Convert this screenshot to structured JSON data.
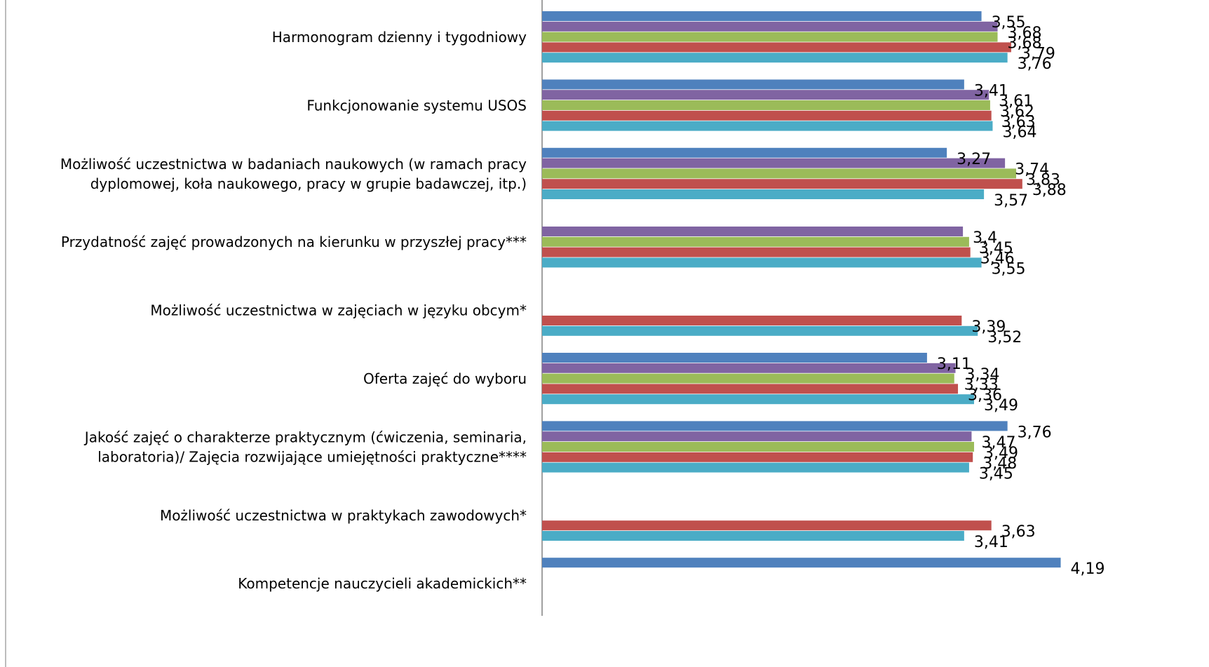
{
  "chart_data": {
    "type": "bar",
    "orientation": "horizontal",
    "grid": false,
    "legend": "none",
    "xlim": [
      0,
      4.7
    ],
    "categories": [
      [
        "Harmonogram dzienny i tygodniowy"
      ],
      [
        "Funkcjonowanie systemu USOS"
      ],
      [
        "Możliwość uczestnictwa w badaniach naukowych (w ramach pracy",
        "dyplomowej, koła naukowego, pracy w grupie badawczej, itp.)"
      ],
      [
        "Przydatność zajęć prowadzonych na kierunku w przyszłej pracy***"
      ],
      [
        "Możliwość uczestnictwa w zajęciach w języku obcym*"
      ],
      [
        "Oferta zajęć do wyboru"
      ],
      [
        "Jakość zajęć o charakterze praktycznym (ćwiczenia, seminaria,",
        "laboratoria)/ Zajęcia rozwijające umiejętności praktyczne****"
      ],
      [
        "Możliwość uczestnictwa w praktykach zawodowych*"
      ],
      [
        "Kompetencje nauczycieli akademickich**"
      ]
    ],
    "series": [
      {
        "color": "#4F81BD",
        "values": [
          3.55,
          3.41,
          3.27,
          null,
          null,
          3.11,
          3.76,
          null,
          4.19
        ],
        "labels": [
          "3,55",
          "3,41",
          "3,27",
          null,
          null,
          "3,11",
          "3,76",
          null,
          "4,19"
        ]
      },
      {
        "color": "#8064A2",
        "values": [
          3.68,
          3.61,
          3.74,
          3.4,
          null,
          3.34,
          3.47,
          null,
          null
        ],
        "labels": [
          "3,68",
          "3,61",
          "3,74",
          "3,4",
          null,
          "3,34",
          "3,47",
          null,
          null
        ]
      },
      {
        "color": "#9BBB59",
        "values": [
          3.68,
          3.62,
          3.83,
          3.45,
          null,
          3.33,
          3.49,
          null,
          null
        ],
        "labels": [
          "3,68",
          "3,62",
          "3,83",
          "3,45",
          null,
          "3,33",
          "3,49",
          null,
          null
        ]
      },
      {
        "color": "#C0504D",
        "values": [
          3.79,
          3.63,
          3.88,
          3.46,
          3.39,
          3.36,
          3.48,
          3.63,
          null
        ],
        "labels": [
          "3,79",
          "3,63",
          "3,88",
          "3,46",
          "3,39",
          "3,36",
          "3,48",
          "3,63",
          null
        ]
      },
      {
        "color": "#4BACC6",
        "values": [
          3.76,
          3.64,
          3.57,
          3.55,
          3.52,
          3.49,
          3.45,
          3.41,
          null
        ],
        "labels": [
          "3,76",
          "3,64",
          "3,57",
          "3,55",
          "3,52",
          "3,49",
          "3,45",
          "3,41",
          null
        ]
      }
    ]
  }
}
